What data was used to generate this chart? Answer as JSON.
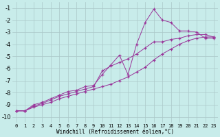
{
  "background_color": "#c8ecea",
  "grid_color": "#aac8c8",
  "line_color": "#993399",
  "xlabel": "Windchill (Refroidissement éolien,°C)",
  "xlim": [
    -0.5,
    23.5
  ],
  "ylim": [
    -10.5,
    -0.5
  ],
  "yticks": [
    -10,
    -9,
    -8,
    -7,
    -6,
    -5,
    -4,
    -3,
    -2,
    -1
  ],
  "xticks": [
    0,
    1,
    2,
    3,
    4,
    5,
    6,
    7,
    8,
    9,
    10,
    11,
    12,
    13,
    14,
    15,
    16,
    17,
    18,
    19,
    20,
    21,
    22,
    23
  ],
  "line1_x": [
    0,
    1,
    2,
    3,
    4,
    5,
    6,
    7,
    8,
    9,
    10,
    11,
    12,
    13,
    14,
    15,
    16,
    17,
    18,
    19,
    20,
    21,
    22,
    23
  ],
  "line1_y": [
    -9.5,
    -9.5,
    -9.2,
    -9.0,
    -8.8,
    -8.5,
    -8.3,
    -8.1,
    -7.9,
    -7.7,
    -7.5,
    -7.3,
    -7.0,
    -6.7,
    -6.3,
    -5.9,
    -5.3,
    -4.8,
    -4.4,
    -4.0,
    -3.7,
    -3.5,
    -3.4,
    -3.4
  ],
  "line2_x": [
    0,
    1,
    2,
    3,
    4,
    5,
    6,
    7,
    8,
    9,
    10,
    11,
    12,
    13,
    14,
    15,
    16,
    17,
    18,
    19,
    20,
    21,
    22,
    23
  ],
  "line2_y": [
    -9.5,
    -9.5,
    -9.1,
    -8.9,
    -8.6,
    -8.3,
    -8.1,
    -7.9,
    -7.7,
    -7.5,
    -6.2,
    -5.8,
    -5.5,
    -5.2,
    -4.8,
    -4.3,
    -3.8,
    -3.8,
    -3.6,
    -3.5,
    -3.3,
    -3.2,
    -3.2,
    -3.4
  ],
  "line3_x": [
    0,
    1,
    2,
    3,
    4,
    5,
    6,
    7,
    8,
    9,
    10,
    11,
    12,
    13,
    14,
    15,
    16,
    17,
    18,
    19,
    20,
    21,
    22,
    23
  ],
  "line3_y": [
    -9.5,
    -9.5,
    -9.0,
    -8.8,
    -8.5,
    -8.2,
    -7.9,
    -7.8,
    -7.5,
    -7.4,
    -6.5,
    -5.7,
    -4.9,
    -6.5,
    -4.0,
    -2.2,
    -1.1,
    -2.0,
    -2.2,
    -2.9,
    -2.9,
    -3.0,
    -3.5,
    -3.5
  ]
}
